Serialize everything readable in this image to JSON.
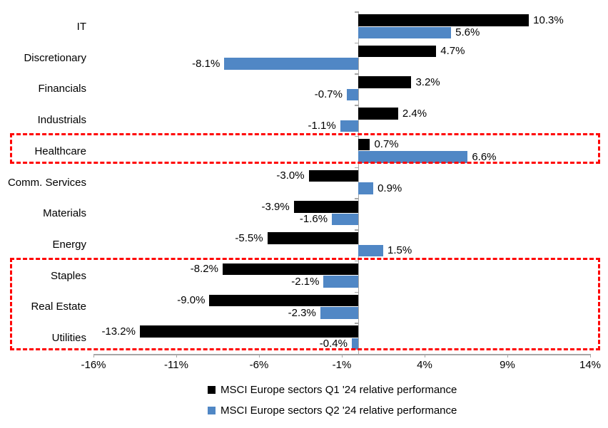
{
  "chart_data": {
    "type": "bar",
    "orientation": "horizontal",
    "title": "",
    "categories": [
      "IT",
      "Discretionary",
      "Financials",
      "Industrials",
      "Healthcare",
      "Comm. Services",
      "Materials",
      "Energy",
      "Staples",
      "Real Estate",
      "Utilities"
    ],
    "series": [
      {
        "name": "MSCI Europe sectors Q1 '24 relative performance",
        "color": "#000000",
        "values": [
          10.3,
          4.7,
          3.2,
          2.4,
          0.7,
          -3.0,
          -3.9,
          -5.5,
          -8.2,
          -9.0,
          -13.2
        ],
        "labels": [
          "10.3%",
          "4.7%",
          "3.2%",
          "2.4%",
          "0.7%",
          "-3.0%",
          "-3.9%",
          "-5.5%",
          "-8.2%",
          "-9.0%",
          "-13.2%"
        ]
      },
      {
        "name": "MSCI Europe sectors Q2 '24 relative performance",
        "color": "#5087C5",
        "values": [
          5.6,
          -8.1,
          -0.7,
          -1.1,
          6.6,
          0.9,
          -1.6,
          1.5,
          -2.1,
          -2.3,
          -0.4
        ],
        "labels": [
          "5.6%",
          "-8.1%",
          "-0.7%",
          "-1.1%",
          "6.6%",
          "0.9%",
          "-1.6%",
          "1.5%",
          "-2.1%",
          "-2.3%",
          "-0.4%"
        ]
      }
    ],
    "xlim": [
      -16,
      14
    ],
    "x_tick_values": [
      -16,
      -11,
      -6,
      -1,
      4,
      9,
      14
    ],
    "x_tick_labels": [
      "-16%",
      "-11%",
      "-6%",
      "-1%",
      "4%",
      "9%",
      "14%"
    ],
    "grid": false,
    "legend_position": "bottom",
    "axis_color": "#A6A6A6",
    "background_color": "#FFFFFF",
    "highlight_boxes": [
      {
        "name": "healthcare-highlight",
        "categories": [
          "Healthcare"
        ],
        "color": "#FF0000",
        "style": "dashed"
      },
      {
        "name": "staples-realestate-utilities-highlight",
        "categories": [
          "Staples",
          "Real Estate",
          "Utilities"
        ],
        "color": "#FF0000",
        "style": "dashed"
      }
    ]
  }
}
